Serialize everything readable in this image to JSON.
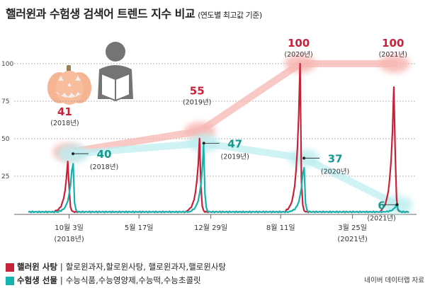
{
  "title": {
    "main": "핼러윈과 수험생 검색어 트렌드 지수 비교",
    "sub": "(연도별 최고값 기준)"
  },
  "colors": {
    "red": "#c8223a",
    "teal": "#14b3ae",
    "teal_dark": "#14998f",
    "grid": "#9a9a9a"
  },
  "icons": [
    "pumpkin-icon",
    "student-reading-icon"
  ],
  "chart_data": {
    "type": "line",
    "title": "핼러윈과 수험생 검색어 트렌드 지수 비교",
    "ylim": [
      0,
      100
    ],
    "yticks": [
      25,
      50,
      75,
      100
    ],
    "x_domain": [
      0,
      100
    ],
    "xticks": [
      {
        "x": 10.5,
        "label": "10월 3일",
        "sub": "(2018년)"
      },
      {
        "x": 28.5,
        "label": "5월 17일",
        "sub": ""
      },
      {
        "x": 47.0,
        "label": "12월 29일",
        "sub": ""
      },
      {
        "x": 65.0,
        "label": "8월 11일",
        "sub": ""
      },
      {
        "x": 83.5,
        "label": "3월 25일",
        "sub": "(2021년)"
      }
    ],
    "series": [
      {
        "name": "핼러윈 사탕",
        "color": "#c8223a",
        "keywords": "할로윈과자,할로윈사탕, 핼로윈과자,핼로윈사탕",
        "peaks": [
          {
            "x": 10.3,
            "value": 41,
            "label": "41",
            "year": "(2018년)"
          },
          {
            "x": 44.2,
            "value": 55,
            "label": "55",
            "year": "(2019년)"
          },
          {
            "x": 70.0,
            "value": 100,
            "label": "100",
            "year": "(2020년)"
          },
          {
            "x": 94.3,
            "value": 100,
            "label": "100",
            "year": "(2021년)"
          }
        ]
      },
      {
        "name": "수험생 선물",
        "color": "#14b3ae",
        "keywords": "수능식품,수능영양제,수능떡,수능초콜릿",
        "peaks": [
          {
            "x": 11.5,
            "value": 40,
            "label": "40",
            "year": "(2018년)"
          },
          {
            "x": 45.2,
            "value": 47,
            "label": "47",
            "year": "(2019년)"
          },
          {
            "x": 71.0,
            "value": 37,
            "label": "37",
            "year": "(2020년)"
          },
          {
            "x": 95.0,
            "value": 6,
            "label": "6",
            "year": "(2021년)"
          }
        ]
      }
    ]
  },
  "legend": [
    {
      "name": "핼러윈 사탕",
      "sep": "|",
      "keywords": "할로윈과자,할로윈사탕, 핼로윈과자,핼로윈사탕",
      "color": "#c8223a"
    },
    {
      "name": "수험생 선물",
      "sep": "|",
      "keywords": "수능식품,수능영양제,수능떡,수능초콜릿",
      "color": "#14b3ae"
    }
  ],
  "source": "네이버 데이터랩 자료"
}
